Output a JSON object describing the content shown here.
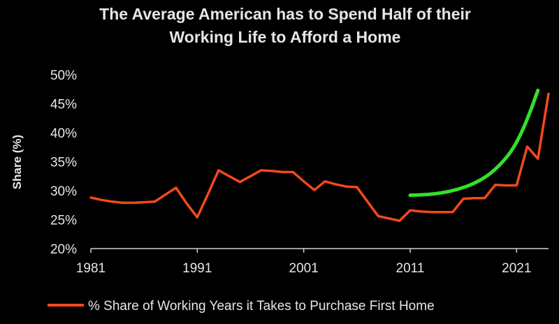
{
  "chart_data": {
    "type": "line",
    "title": [
      "The Average American has to Spend Half of their",
      "Working Life to Afford a Home"
    ],
    "ylabel": "Share (%)",
    "xlabel": "",
    "xlim": [
      1981,
      2024
    ],
    "ylim": [
      20,
      50
    ],
    "x_ticks": [
      1981,
      1991,
      2001,
      2011,
      2021
    ],
    "y_ticks": [
      20,
      25,
      30,
      35,
      40,
      45,
      50
    ],
    "y_tick_labels": [
      "20%",
      "25%",
      "30%",
      "35%",
      "40%",
      "45%",
      "50%"
    ],
    "grid": false,
    "legend_position": "bottom",
    "series": [
      {
        "name": "% Share of Working Years it Takes to Purchase First Home",
        "color": "#f2491c",
        "x": [
          1981,
          1982,
          1983,
          1984,
          1985,
          1986,
          1987,
          1988,
          1989,
          1990,
          1991,
          1992,
          1993,
          1994,
          1995,
          1996,
          1997,
          1998,
          1999,
          2000,
          2001,
          2002,
          2003,
          2004,
          2005,
          2006,
          2007,
          2008,
          2009,
          2010,
          2011,
          2012,
          2013,
          2014,
          2015,
          2016,
          2017,
          2018,
          2019,
          2020,
          2021,
          2022,
          2023,
          2024
        ],
        "y": [
          28.8,
          28.4,
          28.1,
          27.9,
          27.9,
          28.0,
          28.1,
          29.3,
          30.5,
          27.8,
          25.4,
          29.4,
          33.5,
          32.5,
          31.5,
          32.5,
          33.5,
          33.4,
          33.2,
          33.2,
          31.6,
          30.1,
          31.6,
          31.1,
          30.7,
          30.6,
          28.1,
          25.6,
          25.2,
          24.8,
          26.6,
          26.4,
          26.3,
          26.3,
          26.3,
          28.6,
          28.7,
          28.7,
          31.0,
          30.9,
          30.9,
          37.6,
          35.5,
          46.7
        ]
      }
    ],
    "annotations": [
      {
        "kind": "trend-curve",
        "color": "#33e02a",
        "x": [
          2011,
          2012.5,
          2014,
          2015.5,
          2017,
          2018.5,
          2020,
          2021,
          2022,
          2023
        ],
        "y": [
          29.2,
          29.3,
          29.6,
          30.2,
          31.2,
          32.8,
          35.5,
          38.2,
          42.2,
          47.3
        ]
      }
    ]
  }
}
